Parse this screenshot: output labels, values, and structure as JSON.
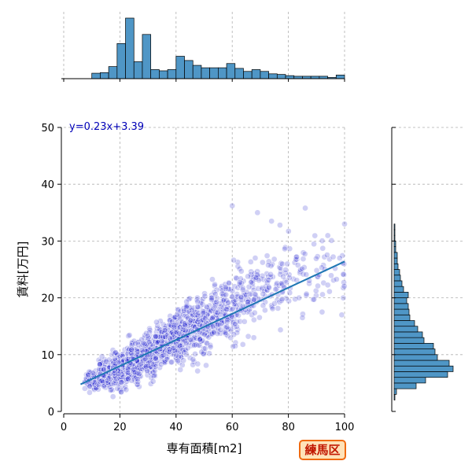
{
  "chart_data": {
    "type": "scatter",
    "xlabel": "専有面積[m2]",
    "ylabel": "賃料[万円]",
    "xlim": [
      0,
      100
    ],
    "ylim": [
      0,
      50
    ],
    "x_ticks": [
      0,
      20,
      40,
      60,
      80,
      100
    ],
    "y_ticks": [
      0,
      10,
      20,
      30,
      40,
      50
    ],
    "grid": true,
    "regression": {
      "slope": 0.23,
      "intercept": 3.39,
      "x_range": [
        6,
        100
      ],
      "label": "y=0.23x+3.39",
      "color": "#1f77b4"
    },
    "point_color": "#2b2bd1",
    "scatter_summary": [
      {
        "x": 10,
        "y_mean": 5.5,
        "y_spread": 1.5,
        "count": 70
      },
      {
        "x": 15,
        "y_mean": 6.5,
        "y_spread": 2.0,
        "count": 160
      },
      {
        "x": 20,
        "y_mean": 7.2,
        "y_spread": 2.2,
        "count": 300
      },
      {
        "x": 25,
        "y_mean": 8.5,
        "y_spread": 2.6,
        "count": 260
      },
      {
        "x": 30,
        "y_mean": 10.0,
        "y_spread": 3.0,
        "count": 180
      },
      {
        "x": 35,
        "y_mean": 11.5,
        "y_spread": 3.3,
        "count": 150
      },
      {
        "x": 40,
        "y_mean": 13.0,
        "y_spread": 3.6,
        "count": 150
      },
      {
        "x": 45,
        "y_mean": 14.5,
        "y_spread": 4.0,
        "count": 130
      },
      {
        "x": 50,
        "y_mean": 15.5,
        "y_spread": 4.2,
        "count": 110
      },
      {
        "x": 55,
        "y_mean": 17.0,
        "y_spread": 4.5,
        "count": 90
      },
      {
        "x": 60,
        "y_mean": 18.5,
        "y_spread": 5.0,
        "count": 80
      },
      {
        "x": 65,
        "y_mean": 19.5,
        "y_spread": 5.2,
        "count": 60
      },
      {
        "x": 70,
        "y_mean": 21.0,
        "y_spread": 5.5,
        "count": 45
      },
      {
        "x": 75,
        "y_mean": 22.0,
        "y_spread": 5.5,
        "count": 35
      },
      {
        "x": 80,
        "y_mean": 23.5,
        "y_spread": 5.5,
        "count": 28
      },
      {
        "x": 85,
        "y_mean": 24.0,
        "y_spread": 5.5,
        "count": 22
      },
      {
        "x": 90,
        "y_mean": 24.5,
        "y_spread": 5.5,
        "count": 18
      },
      {
        "x": 95,
        "y_mean": 25.0,
        "y_spread": 5.5,
        "count": 14
      },
      {
        "x": 100,
        "y_mean": 25.5,
        "y_spread": 5.0,
        "count": 10
      }
    ],
    "notable_points": [
      [
        60,
        36.2
      ],
      [
        69,
        35
      ],
      [
        74,
        33.5
      ],
      [
        77,
        32.8
      ],
      [
        86,
        35.8
      ],
      [
        100,
        33
      ],
      [
        99,
        17
      ],
      [
        92,
        17.5
      ],
      [
        85,
        16.5
      ]
    ],
    "marginal_x_histogram": {
      "bin_edges": [
        10,
        13,
        16,
        19,
        22,
        25,
        28,
        31,
        34,
        37,
        40,
        43,
        46,
        49,
        52,
        55,
        58,
        61,
        64,
        67,
        70,
        73,
        76,
        79,
        82,
        85,
        88,
        91,
        94,
        97,
        100
      ],
      "counts": [
        9,
        10,
        20,
        58,
        100,
        28,
        73,
        15,
        13,
        15,
        37,
        30,
        22,
        18,
        18,
        18,
        25,
        17,
        12,
        15,
        12,
        8,
        7,
        5,
        4,
        4,
        4,
        4,
        2,
        6
      ]
    },
    "marginal_y_histogram": {
      "bin_edges": [
        2,
        3,
        4,
        5,
        6,
        7,
        8,
        9,
        10,
        11,
        12,
        13,
        14,
        15,
        16,
        17,
        18,
        19,
        20,
        21,
        22,
        23,
        24,
        25,
        26,
        27,
        28,
        29,
        30,
        31,
        32,
        33,
        34,
        35,
        36
      ],
      "counts": [
        1,
        3,
        28,
        40,
        68,
        75,
        70,
        55,
        52,
        50,
        38,
        36,
        30,
        26,
        20,
        19,
        18,
        16,
        18,
        12,
        10,
        8,
        7,
        5,
        4,
        4,
        2,
        2,
        1,
        1,
        1,
        0,
        0,
        0
      ]
    }
  },
  "badge": {
    "label": "練馬区",
    "bg": "#ffe2b8",
    "border": "#f06a10",
    "text_color": "#c11700"
  }
}
